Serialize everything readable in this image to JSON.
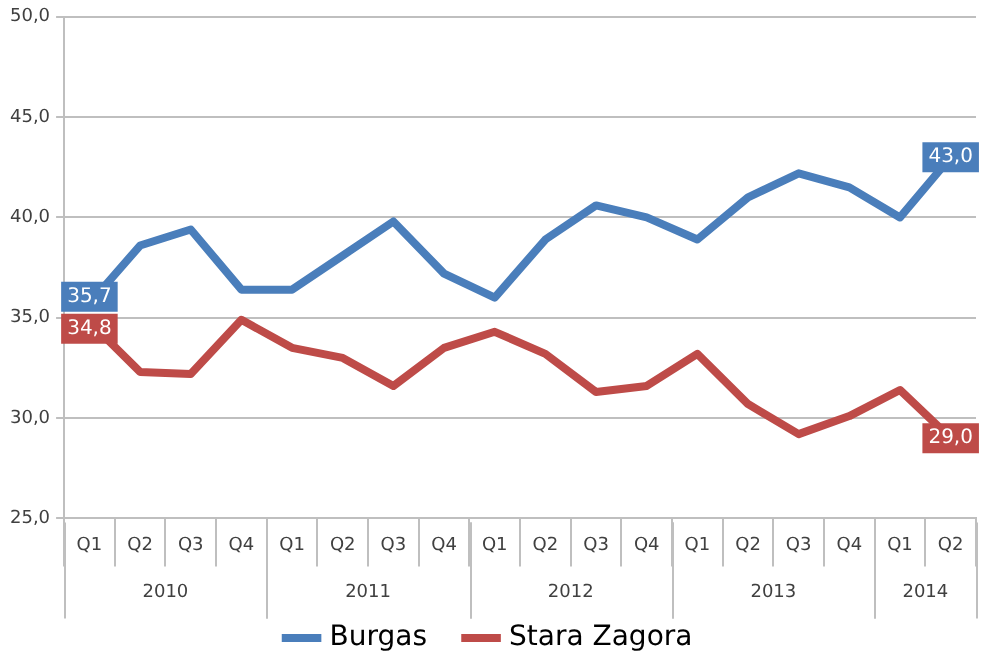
{
  "chart_data": {
    "type": "line",
    "categories": [
      "Q1",
      "Q2",
      "Q3",
      "Q4",
      "Q1",
      "Q2",
      "Q3",
      "Q4",
      "Q1",
      "Q2",
      "Q3",
      "Q4",
      "Q1",
      "Q2",
      "Q3",
      "Q4",
      "Q1",
      "Q2"
    ],
    "annotations": [
      "2010",
      "2011",
      "2012",
      "2013",
      "2014"
    ],
    "series": [
      {
        "name": "Burgas",
        "color": "#4a7ebb",
        "values": [
          35.7,
          38.6,
          39.4,
          36.4,
          36.4,
          38.1,
          39.8,
          37.2,
          36.0,
          38.9,
          40.6,
          40.0,
          38.9,
          41.0,
          42.2,
          41.5,
          40.0,
          43.0
        ],
        "value_labels": [
          "35,7",
          null,
          null,
          null,
          null,
          null,
          null,
          null,
          null,
          null,
          null,
          null,
          null,
          null,
          null,
          null,
          null,
          "43,0"
        ]
      },
      {
        "name": "Stara Zagora",
        "color": "#be4b48",
        "values": [
          34.8,
          32.3,
          32.2,
          34.9,
          33.5,
          33.0,
          31.6,
          33.5,
          34.3,
          33.2,
          31.3,
          31.6,
          33.2,
          30.7,
          29.2,
          30.1,
          31.4,
          29.0
        ],
        "value_labels": [
          "34,8",
          null,
          null,
          null,
          null,
          null,
          null,
          null,
          null,
          null,
          null,
          null,
          null,
          null,
          null,
          null,
          null,
          "29,0"
        ]
      }
    ],
    "ylim": [
      25,
      50
    ],
    "yticks": [
      {
        "value": 25,
        "label": "25,0"
      },
      {
        "value": 30,
        "label": "30,0"
      },
      {
        "value": 35,
        "label": "35,0"
      },
      {
        "value": 40,
        "label": "40,0"
      },
      {
        "value": 45,
        "label": "45,0"
      },
      {
        "value": 50,
        "label": "50,0"
      }
    ],
    "grid": "y",
    "legend": "bottom",
    "marker": "none",
    "line_style": "solid"
  }
}
